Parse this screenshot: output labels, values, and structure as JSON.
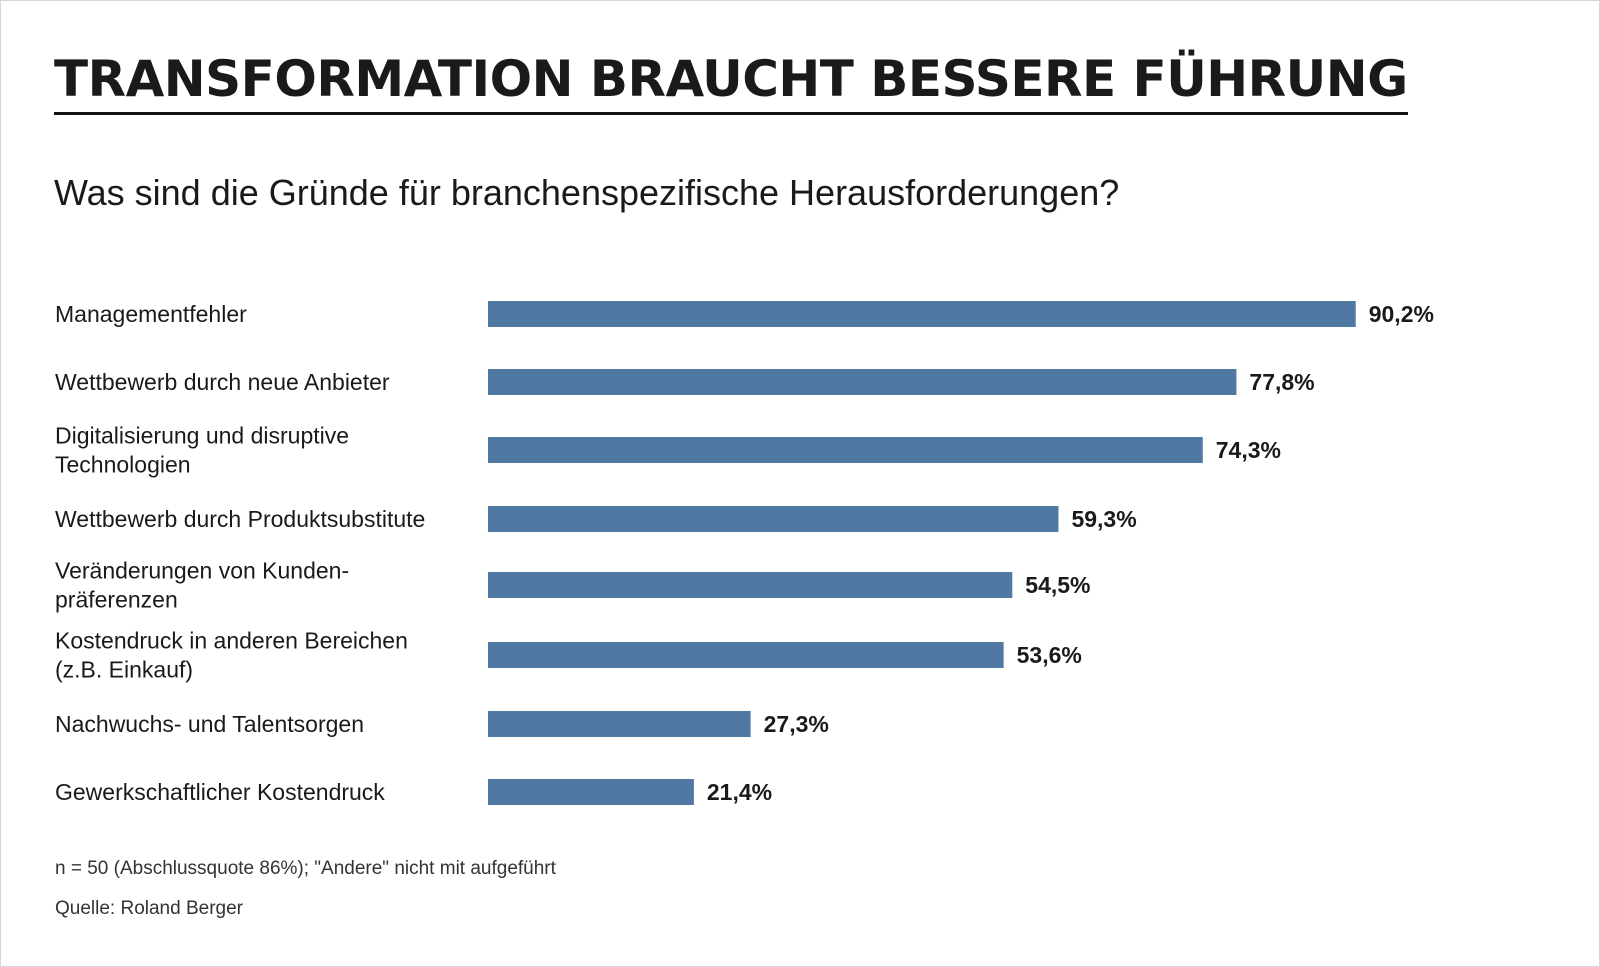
{
  "header": {
    "title": "TRANSFORMATION BRAUCHT BESSERE FÜHRUNG",
    "subtitle": "Was sind die Gründe für branchenspezifische Herausforderungen?"
  },
  "footer": {
    "note": "n = 50 (Abschlussquote 86%); \"Andere\" nicht mit aufgeführt",
    "source": "Quelle: Roland Berger"
  },
  "colors": {
    "bar": "#4f79a3",
    "text": "#1a1a1a"
  },
  "chart_data": {
    "type": "bar",
    "orientation": "horizontal",
    "title": "TRANSFORMATION BRAUCHT BESSERE FÜHRUNG",
    "subtitle": "Was sind die Gründe für branchenspezifische Herausforderungen?",
    "unit": "%",
    "xlim": [
      0,
      100
    ],
    "grid": false,
    "categories": [
      [
        "Managementfehler"
      ],
      [
        "Wettbewerb durch neue Anbieter"
      ],
      [
        "Digitalisierung und disruptive",
        "Technologien"
      ],
      [
        "Wettbewerb durch Produktsubstitute"
      ],
      [
        "Veränderungen von Kunden-",
        "präferenzen"
      ],
      [
        "Kostendruck in anderen Bereichen",
        "(z.B. Einkauf)"
      ],
      [
        "Nachwuchs- und Talentsorgen"
      ],
      [
        "Gewerkschaftlicher Kostendruck"
      ]
    ],
    "values": [
      90.2,
      77.8,
      74.3,
      59.3,
      54.5,
      53.6,
      27.3,
      21.4
    ],
    "value_labels": [
      "90,2%",
      "77,8%",
      "74,3%",
      "59,3%",
      "54,5%",
      "53,6%",
      "27,3%",
      "21,4%"
    ]
  }
}
